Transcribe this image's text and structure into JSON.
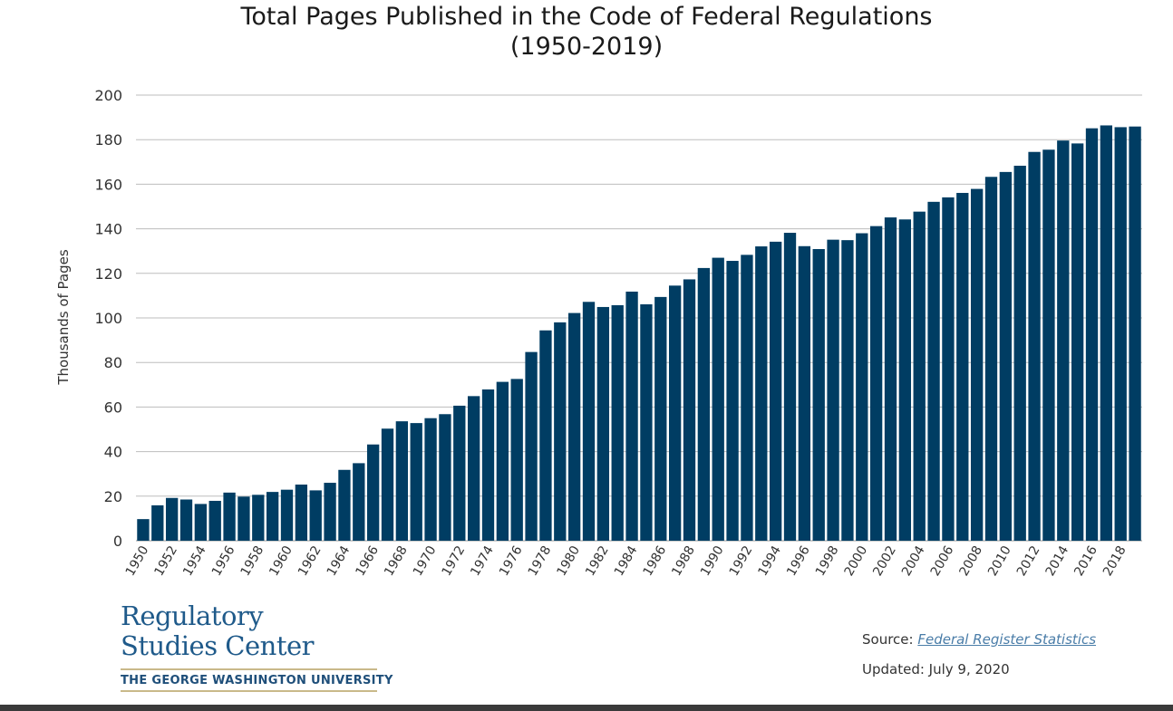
{
  "chart_data": {
    "type": "bar",
    "title_line1": "Total Pages Published in the Code of Federal Regulations",
    "title_line2": "(1950-2019)",
    "ylabel": "Thousands of Pages",
    "ylim": [
      0,
      200
    ],
    "yticks": [
      0,
      20,
      40,
      60,
      80,
      100,
      120,
      140,
      160,
      180,
      200
    ],
    "grid": true,
    "bar_color": "#003d63",
    "x_tick_labels": [
      "1950",
      "1952",
      "1954",
      "1956",
      "1958",
      "1960",
      "1962",
      "1964",
      "1966",
      "1968",
      "1970",
      "1972",
      "1974",
      "1976",
      "1978",
      "1980",
      "1982",
      "1984",
      "1986",
      "1988",
      "1990",
      "1992",
      "1994",
      "1996",
      "1998",
      "2000",
      "2002",
      "2004",
      "2006",
      "2008",
      "2010",
      "2012",
      "2014",
      "2016",
      "2018"
    ],
    "categories": [
      1950,
      1951,
      1952,
      1953,
      1954,
      1955,
      1956,
      1957,
      1958,
      1959,
      1960,
      1961,
      1962,
      1963,
      1964,
      1965,
      1966,
      1967,
      1968,
      1969,
      1970,
      1971,
      1972,
      1973,
      1974,
      1975,
      1976,
      1977,
      1978,
      1979,
      1980,
      1981,
      1982,
      1983,
      1984,
      1985,
      1986,
      1987,
      1988,
      1989,
      1990,
      1991,
      1992,
      1993,
      1994,
      1995,
      1996,
      1997,
      1998,
      1999,
      2000,
      2001,
      2002,
      2003,
      2004,
      2005,
      2006,
      2007,
      2008,
      2009,
      2010,
      2011,
      2012,
      2013,
      2014,
      2015,
      2016,
      2017,
      2018,
      2019
    ],
    "values": [
      9.7,
      15.9,
      19.2,
      18.5,
      16.5,
      17.9,
      21.6,
      19.8,
      20.6,
      21.9,
      22.9,
      25.2,
      22.6,
      26.0,
      31.8,
      34.8,
      43.2,
      50.3,
      53.6,
      52.8,
      55.0,
      56.8,
      60.6,
      64.9,
      67.9,
      71.3,
      72.6,
      84.7,
      94.4,
      98.0,
      102.2,
      107.2,
      104.9,
      105.7,
      111.8,
      106.1,
      109.4,
      114.5,
      117.3,
      122.4,
      127.0,
      125.6,
      128.3,
      132.1,
      134.2,
      138.2,
      132.2,
      130.9,
      135.1,
      134.9,
      138.0,
      141.2,
      145.1,
      144.2,
      147.7,
      152.1,
      154.1,
      156.1,
      157.9,
      163.3,
      165.5,
      168.3,
      174.5,
      175.5,
      179.6,
      178.3,
      185.1,
      186.4,
      185.6,
      185.9
    ]
  },
  "logo": {
    "line1": "Regulatory",
    "line2": "Studies Center",
    "university": "THE GEORGE WASHINGTON UNIVERSITY"
  },
  "source": {
    "label": "Source: ",
    "link_text": "Federal Register Statistics",
    "updated": "Updated: July 9, 2020"
  }
}
